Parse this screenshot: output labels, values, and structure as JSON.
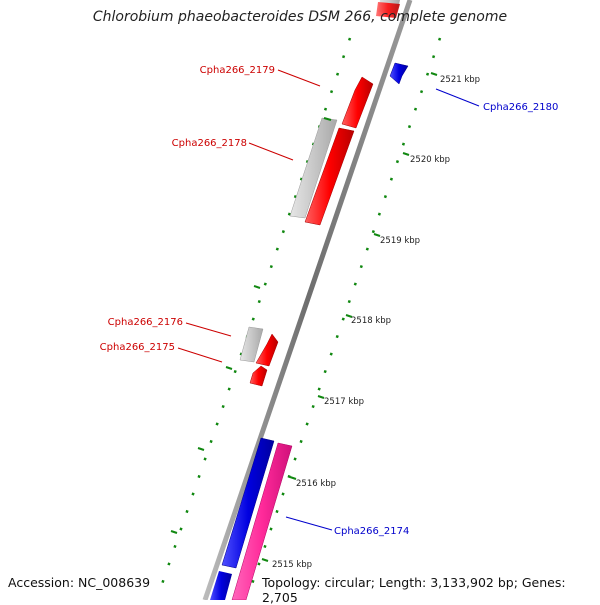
{
  "title": "Chlorobium phaeobacteroides DSM 266, complete genome",
  "footer": {
    "accession": "Accession: NC_008639",
    "topology": "Topology: circular; Length: 3,133,902 bp; Genes: 2,705"
  },
  "ticks": [
    "2521 kbp",
    "2520 kbp",
    "2519 kbp",
    "2518 kbp",
    "2517 kbp",
    "2516 kbp",
    "2515 kbp"
  ],
  "genes": [
    {
      "label": "Cpha266_2179",
      "color": "#cc0000"
    },
    {
      "label": "Cpha266_2178",
      "color": "#cc0000"
    },
    {
      "label": "Cpha266_2176",
      "color": "#cc0000"
    },
    {
      "label": "Cpha266_2175",
      "color": "#cc0000"
    },
    {
      "label": "Cpha266_2180",
      "color": "#0000cc"
    },
    {
      "label": "Cpha266_2174",
      "color": "#0000cc"
    }
  ],
  "colors": {
    "forward_strand": "#ff0000",
    "reverse_strand": "#0000dd",
    "pseudogene": "#c8c8c8",
    "rna": "#ff3399",
    "backbone": "#7f7f7f",
    "tick": "#118811"
  }
}
